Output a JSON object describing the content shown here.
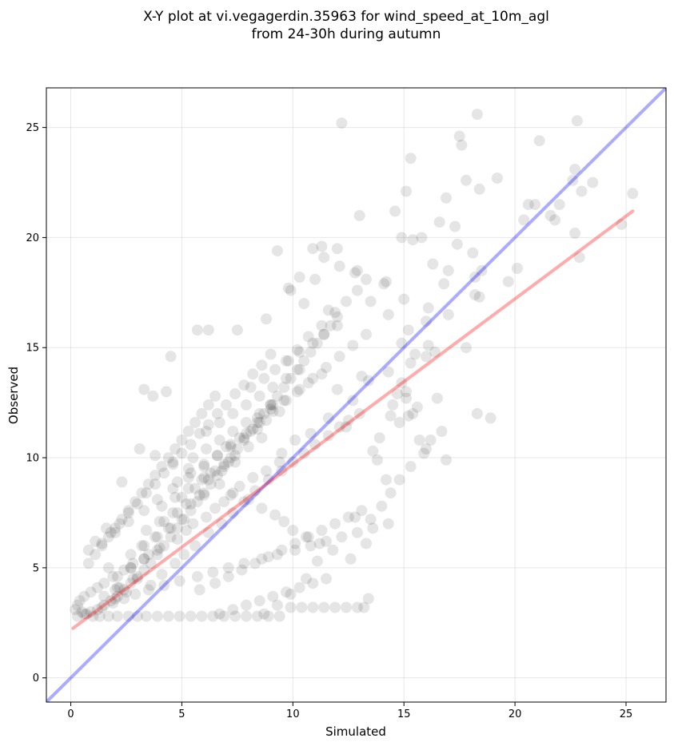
{
  "chart_data": {
    "type": "scatter",
    "title": "X-Y plot at vi.vegagerdin.35963 for wind_speed_at_10m_agl",
    "subtitle": "from 24-30h during autumn",
    "xlabel": "Simulated",
    "ylabel": "Observed",
    "xlim": [
      -1.1,
      26.8
    ],
    "ylim": [
      -1.1,
      26.8
    ],
    "x_ticks": [
      "0",
      "5",
      "10",
      "15",
      "20",
      "25"
    ],
    "y_ticks": [
      "0",
      "5",
      "10",
      "15",
      "20",
      "25"
    ],
    "grid": true,
    "legend": "none",
    "colors": {
      "points": "#000000",
      "identity_line": "#0000ff",
      "regression_line": "#ff0000"
    },
    "identity_line": {
      "x": [
        -1.1,
        26.8
      ],
      "y": [
        -1.1,
        26.8
      ]
    },
    "regression_line": {
      "x": [
        0.1,
        25.3
      ],
      "y": [
        2.25,
        21.2
      ]
    },
    "points": {
      "x": [
        12.2,
        18.3,
        22.8,
        17.5,
        21.1,
        17.6,
        17.8,
        19.2,
        20.6,
        22.7,
        22.6,
        23.0,
        18.4,
        20.9,
        14.6,
        13.0,
        11.3,
        9.3,
        12.0,
        15.3,
        17.3,
        20.4,
        21.8,
        22.7,
        22.9,
        14.9,
        15.1,
        16.6,
        15.8,
        18.1,
        16.9,
        17.4,
        12.8,
        11.0,
        14.2,
        15.4,
        18.5,
        18.2,
        16.3,
        16.8,
        17.0,
        18.2,
        18.4,
        16.1,
        17.0,
        6.2,
        5.7,
        7.5,
        8.8,
        9.8,
        10.5,
        11.6,
        12.9,
        13.5,
        14.1,
        14.3,
        15.0,
        16.0,
        16.1,
        15.2,
        14.9,
        15.5,
        15.3,
        16.0,
        16.4,
        15.1,
        14.7,
        14.5,
        15.2,
        14.4,
        3.7,
        3.3,
        4.3,
        4.5,
        9.0,
        12.0,
        13.1,
        14.3,
        15.1,
        13.4,
        12.7,
        11.6,
        10.8,
        10.1,
        9.5,
        9.4,
        8.8,
        8.2,
        7.6,
        7.2,
        6.9,
        6.5,
        6.1,
        5.5,
        5.2,
        4.8,
        4.0,
        3.5,
        2.8,
        2.4,
        1.9,
        1.5,
        1.2,
        0.9,
        0.6,
        0.4,
        0.3,
        0.2,
        0.5,
        0.7,
        1.0,
        1.3,
        1.7,
        2.1,
        2.6,
        3.0,
        3.4,
        3.9,
        4.4,
        4.9,
        5.4,
        5.9,
        6.4,
        6.9,
        7.4,
        7.9,
        8.4,
        8.9,
        9.4,
        9.9,
        10.4,
        10.9,
        11.4,
        11.9,
        12.4,
        12.9,
        13.2,
        13.4,
        12.6,
        11.8,
        11.2,
        10.6,
        10.0,
        9.6,
        9.2,
        8.6,
        8.0,
        7.3,
        6.7,
        6.0,
        5.3,
        4.6,
        3.8,
        3.1,
        2.3,
        1.6,
        1.1,
        0.8,
        2.0,
        2.5,
        3.0,
        3.6,
        4.1,
        4.7,
        5.1,
        5.6,
        6.2,
        6.8,
        7.3,
        7.8,
        8.3,
        8.9,
        9.5,
        10.0,
        10.5,
        11.0,
        11.6,
        12.1,
        12.5,
        13.0,
        13.5,
        14.0,
        14.4,
        14.8,
        15.3,
        15.9,
        16.2,
        9.8,
        10.2,
        10.7,
        11.3,
        11.9,
        12.4,
        12.9,
        13.3,
        12.1,
        11.4,
        10.9,
        10.3,
        9.9,
        2.0,
        2.6,
        3.3,
        3.9,
        4.6,
        5.3,
        6.0,
        6.6,
        7.2,
        7.9,
        8.5,
        9.1,
        9.7,
        10.3,
        10.9,
        11.5,
        12.1,
        12.7,
        13.3,
        1.7,
        1.9,
        2.4,
        2.9,
        3.5,
        4.2,
        4.9,
        5.7,
        6.4,
        7.1,
        7.8,
        8.6,
        9.3,
        10.1,
        10.8,
        11.5,
        12.2,
        12.9,
        13.6,
        14.3,
        8.1,
        8.7,
        9.2,
        9.7,
        10.3,
        10.9,
        11.4,
        12.0,
        8.4,
        9.0,
        9.6,
        10.2,
        10.7,
        11.3,
        7.0,
        7.6,
        8.2,
        8.8,
        9.4,
        6.3,
        6.9,
        7.4,
        8.0,
        8.6,
        5.0,
        5.6,
        6.2,
        6.8,
        7.4,
        4.2,
        4.8,
        5.4,
        6.0,
        3.2,
        3.8,
        4.4,
        5.0,
        2.7,
        3.3,
        3.9,
        2.2,
        2.8,
        1.4,
        2.0,
        5.8,
        6.5,
        7.1,
        7.7,
        8.3,
        8.9,
        9.5,
        10.1,
        10.7,
        11.3,
        11.9,
        12.5,
        13.1,
        6.7,
        7.3,
        7.9,
        8.5,
        9.1,
        9.7,
        10.3,
        10.9,
        11.5,
        6.1,
        6.7,
        7.3,
        7.9,
        8.5,
        9.1,
        9.7,
        10.3,
        5.5,
        6.1,
        6.7,
        7.3,
        7.9,
        8.5,
        9.1,
        4.8,
        5.4,
        6.0,
        6.6,
        7.2,
        7.8,
        8.4,
        4.1,
        4.7,
        5.3,
        5.9,
        6.5,
        7.1,
        3.4,
        4.0,
        4.6,
        5.2,
        5.8,
        2.7,
        3.3,
        3.9,
        4.5,
        2.1,
        2.7,
        3.3,
        1.5,
        2.1,
        16.0,
        16.7,
        18.3,
        18.9,
        22.0,
        21.6,
        23.5,
        25.3,
        24.8,
        20.1,
        19.7,
        15.6,
        14.8,
        13.9,
        13.6,
        12.4,
        14.9,
        15.4,
        16.5,
        17.8,
        13.8,
        14.2,
        15.7,
        16.9,
        12.8,
        13.3,
        11.1,
        10.6,
        9.9,
        9.3,
        8.7,
        0.3,
        0.6,
        0.9,
        1.2,
        1.5,
        1.8,
        2.1,
        2.4,
        2.7,
        3.0,
        3.3,
        3.6,
        3.9,
        4.2,
        4.5,
        4.8,
        5.1,
        5.4,
        5.7,
        6.0,
        6.3,
        6.6,
        6.9,
        7.2,
        7.5,
        7.8,
        8.1,
        8.4,
        8.7,
        9.0,
        9.3,
        9.6,
        9.9,
        10.2,
        10.5,
        10.8,
        11.1,
        11.4,
        11.7,
        12.0,
        1.4,
        1.8,
        2.2,
        2.6,
        3.0,
        3.4,
        3.8,
        4.2,
        4.6,
        5.0,
        5.4,
        5.8,
        6.2,
        6.6,
        7.0,
        7.4,
        7.8,
        8.2,
        8.6,
        9.0,
        0.8,
        1.1,
        1.4,
        1.7,
        2.0,
        2.3,
        2.6,
        2.9,
        3.2,
        3.5,
        3.8,
        4.1,
        4.4,
        4.7,
        5.0,
        5.3,
        5.6,
        5.9,
        6.2,
        6.5
      ],
      "y": [
        25.2,
        25.6,
        25.3,
        24.6,
        24.4,
        24.2,
        22.6,
        22.7,
        21.5,
        23.1,
        22.6,
        22.1,
        22.2,
        21.5,
        21.2,
        21.0,
        19.6,
        19.4,
        19.5,
        23.6,
        20.5,
        20.8,
        20.8,
        20.2,
        19.1,
        20.0,
        22.1,
        20.7,
        20.0,
        19.3,
        21.8,
        19.7,
        18.4,
        18.1,
        18.0,
        19.9,
        18.5,
        18.2,
        18.8,
        17.9,
        18.5,
        17.4,
        17.3,
        16.8,
        16.5,
        15.8,
        15.8,
        15.8,
        16.3,
        17.7,
        17.0,
        16.7,
        18.5,
        17.1,
        17.9,
        16.5,
        17.2,
        16.2,
        15.1,
        15.8,
        15.2,
        14.7,
        14.3,
        14.6,
        14.8,
        13.0,
        12.9,
        12.4,
        11.9,
        11.9,
        12.8,
        13.1,
        13.0,
        14.6,
        12.4,
        13.1,
        13.7,
        13.9,
        12.7,
        13.5,
        12.6,
        11.8,
        11.1,
        10.8,
        10.2,
        9.8,
        9.4,
        9.1,
        8.7,
        8.3,
        8.0,
        7.7,
        7.3,
        7.0,
        6.7,
        6.3,
        5.9,
        5.6,
        5.2,
        4.9,
        4.6,
        4.3,
        4.1,
        3.9,
        3.7,
        3.5,
        3.3,
        3.1,
        3.0,
        2.9,
        2.8,
        2.8,
        2.8,
        2.8,
        2.8,
        2.8,
        2.8,
        2.8,
        2.8,
        2.8,
        2.8,
        2.8,
        2.8,
        2.8,
        2.8,
        2.8,
        2.8,
        2.8,
        2.8,
        3.2,
        3.2,
        3.2,
        3.2,
        3.2,
        3.2,
        3.2,
        3.2,
        3.6,
        5.4,
        5.8,
        6.1,
        6.4,
        6.7,
        7.1,
        7.4,
        7.7,
        8.1,
        8.4,
        8.8,
        9.1,
        9.5,
        9.8,
        10.1,
        10.4,
        8.9,
        6.8,
        6.2,
        5.8,
        4.0,
        3.9,
        4.5,
        4.2,
        4.7,
        5.2,
        5.6,
        6.0,
        6.6,
        7.0,
        7.5,
        8.0,
        8.5,
        9.0,
        9.4,
        9.8,
        10.2,
        10.6,
        11.0,
        11.4,
        11.7,
        12.0,
        7.2,
        7.8,
        8.4,
        9.0,
        9.6,
        10.2,
        10.8,
        14.4,
        14.9,
        15.5,
        16.0,
        16.6,
        17.1,
        17.6,
        18.1,
        18.7,
        19.1,
        19.5,
        18.2,
        17.6,
        6.6,
        7.1,
        7.6,
        8.1,
        8.6,
        9.1,
        9.6,
        10.1,
        10.6,
        11.1,
        11.6,
        12.1,
        12.6,
        13.1,
        13.6,
        14.1,
        14.6,
        15.1,
        15.6,
        5.0,
        3.4,
        3.6,
        3.8,
        4.0,
        4.2,
        4.4,
        4.6,
        4.8,
        5.0,
        5.2,
        5.4,
        5.6,
        5.8,
        6.0,
        6.2,
        6.4,
        6.6,
        6.8,
        7.0,
        13.2,
        13.6,
        14.0,
        14.4,
        14.8,
        15.2,
        15.6,
        16.0,
        11.8,
        12.2,
        12.6,
        13.0,
        13.4,
        13.8,
        10.5,
        10.9,
        11.3,
        11.7,
        12.1,
        9.3,
        9.7,
        10.1,
        10.5,
        10.9,
        8.2,
        8.6,
        9.0,
        9.4,
        9.8,
        7.1,
        7.5,
        7.9,
        8.3,
        6.0,
        6.4,
        6.8,
        7.2,
        5.0,
        5.4,
        5.8,
        4.1,
        4.5,
        3.2,
        3.6,
        4.0,
        4.3,
        4.6,
        4.9,
        5.2,
        5.5,
        5.8,
        6.1,
        6.4,
        6.7,
        7.0,
        7.3,
        7.6,
        2.9,
        3.1,
        3.3,
        3.5,
        3.7,
        3.9,
        4.1,
        4.3,
        4.5,
        11.2,
        11.6,
        12.0,
        12.4,
        12.8,
        13.2,
        13.6,
        14.0,
        10.0,
        10.4,
        10.8,
        11.2,
        11.6,
        12.0,
        12.4,
        8.9,
        9.3,
        9.7,
        10.1,
        10.5,
        10.9,
        11.3,
        7.8,
        8.2,
        8.6,
        9.0,
        9.4,
        9.8,
        6.7,
        7.1,
        7.5,
        7.9,
        8.3,
        5.6,
        6.0,
        6.4,
        6.8,
        4.6,
        5.0,
        5.4,
        3.7,
        4.1,
        10.4,
        11.2,
        12.0,
        11.8,
        21.5,
        21.0,
        22.5,
        22.0,
        20.6,
        18.6,
        18.0,
        12.3,
        11.6,
        10.9,
        10.3,
        11.4,
        13.4,
        12.0,
        12.7,
        15.0,
        9.9,
        9.0,
        10.8,
        9.9,
        7.3,
        6.1,
        5.3,
        4.5,
        3.8,
        3.3,
        2.9,
        2.8,
        2.9,
        3.0,
        3.1,
        3.3,
        3.5,
        3.7,
        4.0,
        4.3,
        4.6,
        4.9,
        5.2,
        5.6,
        6.0,
        6.4,
        6.8,
        7.2,
        7.6,
        8.0,
        8.4,
        8.8,
        9.2,
        9.6,
        10.0,
        10.4,
        10.8,
        11.2,
        11.6,
        12.0,
        12.4,
        12.8,
        13.2,
        13.6,
        14.0,
        14.4,
        14.8,
        15.2,
        15.6,
        16.0,
        16.4,
        6.1,
        6.6,
        7.0,
        7.5,
        7.9,
        8.4,
        8.8,
        9.3,
        9.7,
        10.2,
        10.6,
        11.1,
        11.5,
        12.0,
        12.4,
        12.9,
        13.3,
        13.8,
        14.2,
        14.7,
        5.2,
        5.6,
        6.0,
        6.4,
        6.8,
        7.2,
        7.6,
        8.0,
        8.4,
        8.8,
        9.2,
        9.6,
        10.0,
        10.4,
        10.8,
        11.2,
        11.6,
        12.0,
        12.4,
        12.8
      ]
    }
  }
}
